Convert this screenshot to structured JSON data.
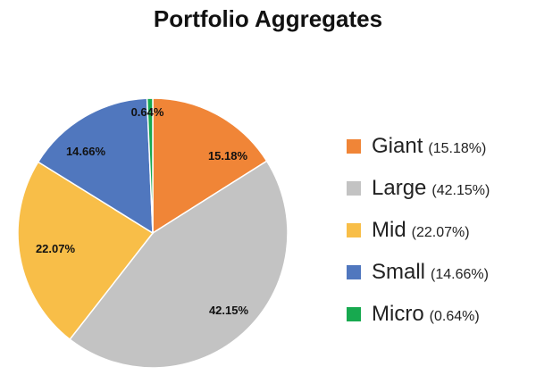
{
  "chart_data": {
    "type": "pie",
    "title": "Portfolio Aggregates",
    "slices": [
      {
        "name": "Giant",
        "value": 15.18,
        "label": "15.18%",
        "legend_pct": "(15.18%)",
        "color": "#F08537"
      },
      {
        "name": "Large",
        "value": 42.15,
        "label": "42.15%",
        "legend_pct": "(42.15%)",
        "color": "#C3C3C3"
      },
      {
        "name": "Mid",
        "value": 22.07,
        "label": "22.07%",
        "legend_pct": "(22.07%)",
        "color": "#F8BE48"
      },
      {
        "name": "Small",
        "value": 14.66,
        "label": "14.66%",
        "legend_pct": "(14.66%)",
        "color": "#5077BE"
      },
      {
        "name": "Micro",
        "value": 0.64,
        "label": "0.64%",
        "legend_pct": "(0.64%)",
        "color": "#17A94F"
      }
    ],
    "start_angle": "12 o'clock",
    "direction": "clockwise",
    "legend_position": "right"
  }
}
